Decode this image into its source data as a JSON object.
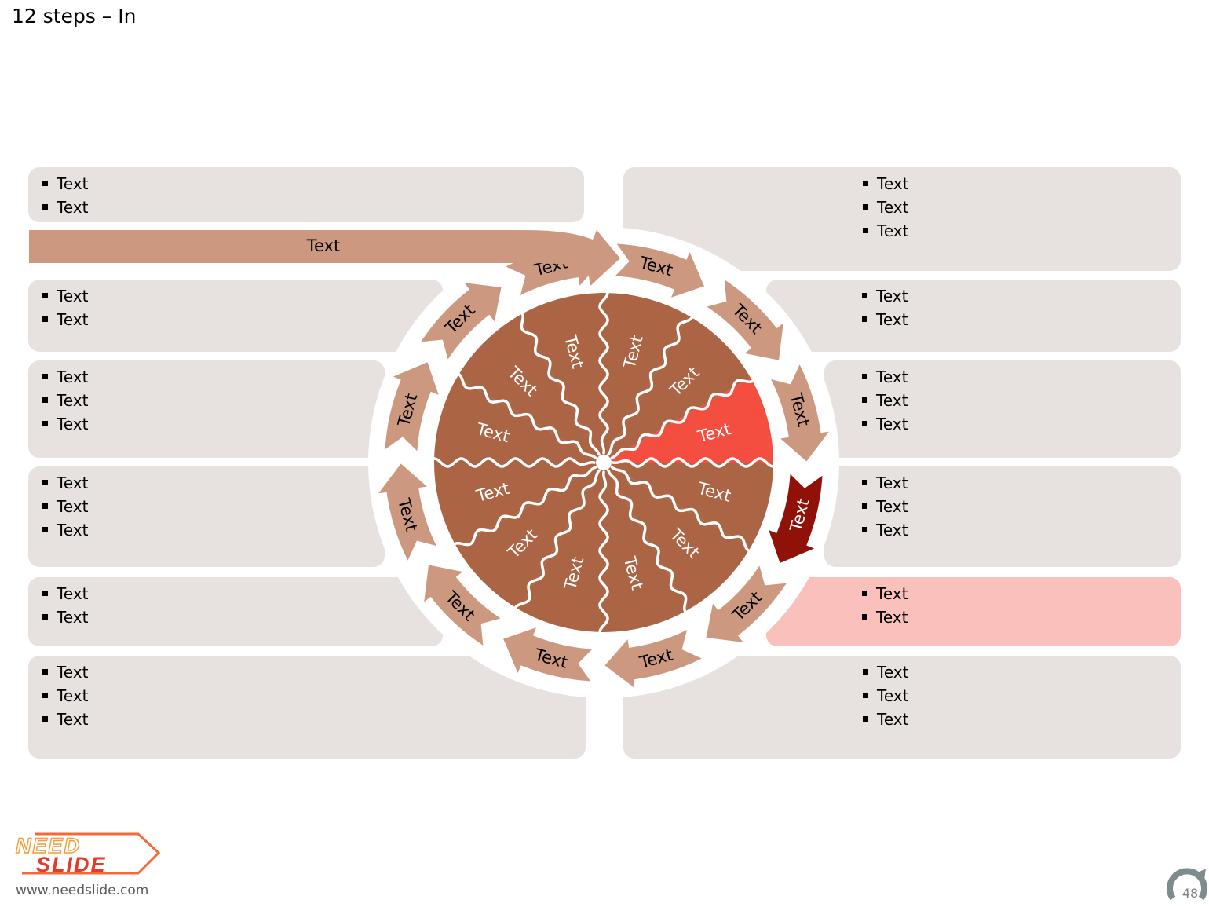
{
  "title": "12 steps – In",
  "colors": {
    "panel": "#e7e2df",
    "panel_highlight": "#fac1bc",
    "arrow": "#cc9980",
    "arrow_active": "#8f1108",
    "pie": "#ab6444",
    "pie_active": "#f34e40"
  },
  "entry_arrow_label": "Text",
  "ring_arrows": [
    "Text",
    "Text",
    "Text",
    "Text",
    "Text",
    "Text",
    "Text",
    "Text",
    "Text",
    "Text",
    "Text",
    "Text"
  ],
  "active_ring_arrow": 3,
  "pie_sectors": [
    "Text",
    "Text",
    "Text",
    "Text",
    "Text",
    "Text",
    "Text",
    "Text",
    "Text",
    "Text",
    "Text",
    "Text"
  ],
  "active_pie_sector": 2,
  "left_panels": [
    {
      "bullets": [
        "Text",
        "Text"
      ]
    },
    {
      "bullets": [
        "Text",
        "Text"
      ]
    },
    {
      "bullets": [
        "Text",
        "Text",
        "Text"
      ]
    },
    {
      "bullets": [
        "Text",
        "Text",
        "Text"
      ]
    },
    {
      "bullets": [
        "Text",
        "Text"
      ]
    },
    {
      "bullets": [
        "Text",
        "Text",
        "Text"
      ]
    }
  ],
  "right_panels": [
    {
      "bullets": [
        "Text",
        "Text",
        "Text"
      ]
    },
    {
      "bullets": [
        "Text",
        "Text"
      ]
    },
    {
      "bullets": [
        "Text",
        "Text",
        "Text"
      ]
    },
    {
      "bullets": [
        "Text",
        "Text",
        "Text"
      ]
    },
    {
      "bullets": [
        "Text",
        "Text"
      ],
      "highlighted": true
    },
    {
      "bullets": [
        "Text",
        "Text",
        "Text"
      ]
    }
  ],
  "footer": {
    "logo_text_top": "NEED",
    "logo_text_bottom": "SLIDE",
    "url": "www.needslide.com",
    "page_number": "48"
  }
}
